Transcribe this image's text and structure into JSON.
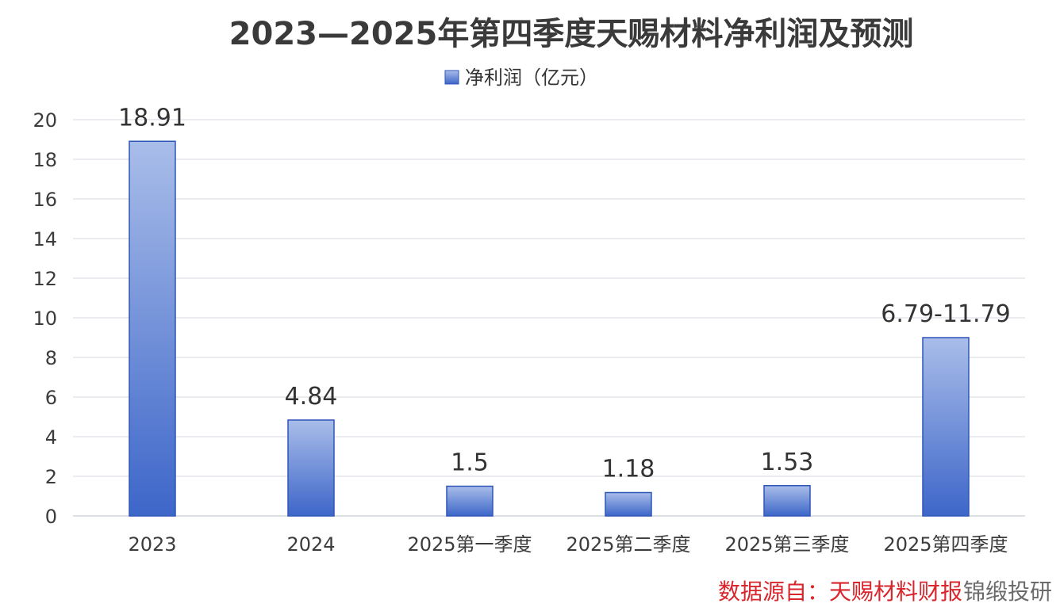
{
  "chart_data": {
    "type": "bar",
    "title": "2023—2025年第四季度天赐材料净利润及预测",
    "legend": "top-center",
    "series": [
      {
        "name": "净利润（亿元）",
        "values": [
          18.91,
          4.84,
          1.5,
          1.18,
          1.53,
          9.0
        ],
        "labels": [
          "18.91",
          "4.84",
          "1.5",
          "1.18",
          "1.53",
          "6.79-11.79"
        ]
      }
    ],
    "categories": [
      "2023",
      "2024",
      "2025第一季度",
      "2025第二季度",
      "2025第三季度",
      "2025第四季度"
    ],
    "ylim": [
      0,
      20
    ],
    "yticks": [
      0,
      2,
      4,
      6,
      8,
      10,
      12,
      14,
      16,
      18,
      20
    ],
    "grid": true,
    "colors": {
      "bar_top": "#a9bde9",
      "bar_bottom": "#3d66c9",
      "bar_stroke": "#2f55b8"
    }
  },
  "footer": {
    "source": "数据源自：天赐材料财报",
    "watermark": "锦缎投研"
  }
}
